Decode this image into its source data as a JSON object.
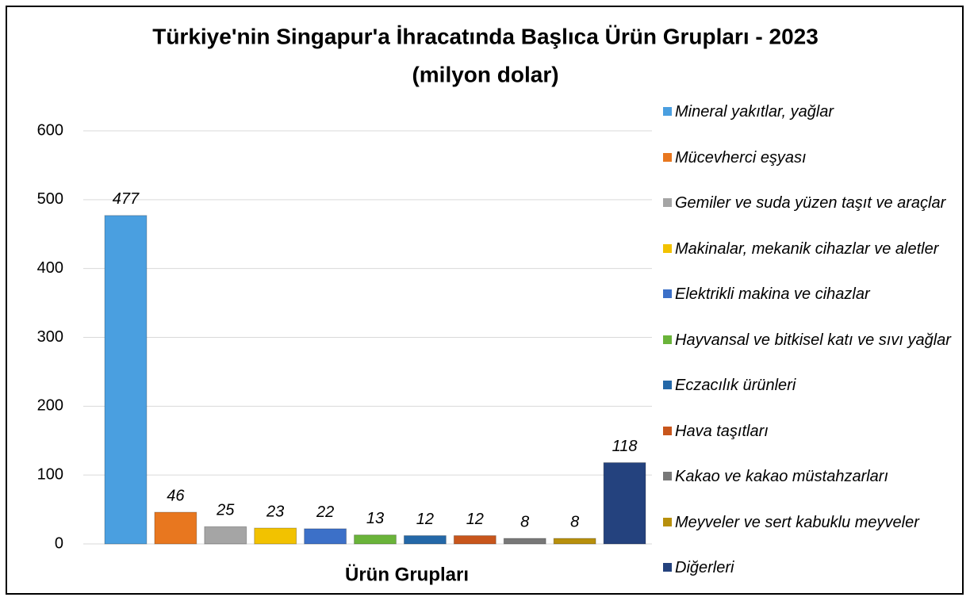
{
  "chart_data": {
    "type": "bar",
    "title": "Türkiye'nin Singapur'a İhracatında Başlıca Ürün Grupları - 2023",
    "subtitle": "(milyon dolar)",
    "x_label": "Ürün Grupları",
    "categories": [
      "Mineral yakıtlar, yağlar",
      "Mücevherci eşyası",
      "Gemiler ve suda yüzen taşıt ve araçlar",
      "Makinalar, mekanik cihazlar ve aletler",
      "Elektrikli makina ve cihazlar",
      "Hayvansal ve bitkisel katı ve sıvı yağlar",
      "Eczacılık ürünleri",
      "Hava taşıtları",
      "Kakao ve kakao müstahzarları",
      "Meyveler ve sert kabuklu meyveler",
      "Diğerleri"
    ],
    "values": [
      477,
      46,
      25,
      23,
      22,
      13,
      12,
      12,
      8,
      8,
      118
    ],
    "colors": [
      "#4a9fe0",
      "#e8771f",
      "#a5a5a5",
      "#f2c200",
      "#3c70c8",
      "#6ab43a",
      "#2468a8",
      "#c8561c",
      "#787878",
      "#b8900c",
      "#24427e"
    ],
    "ylim": [
      0,
      600
    ],
    "yticks": [
      0,
      100,
      200,
      300,
      400,
      500,
      600
    ],
    "grid": true,
    "legend": "right"
  }
}
